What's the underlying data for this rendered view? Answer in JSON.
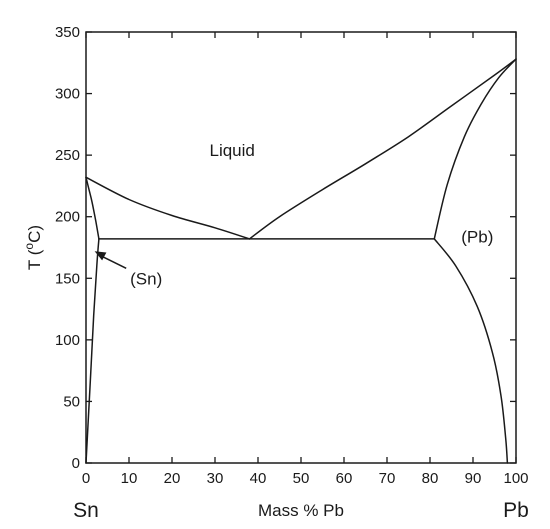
{
  "chart_data": {
    "type": "line",
    "title": "",
    "xlabel": "Mass % Pb",
    "ylabel": "T (°C)",
    "xlim": [
      0,
      100
    ],
    "ylim": [
      0,
      350
    ],
    "x_ticks": [
      0,
      10,
      20,
      30,
      40,
      50,
      60,
      70,
      80,
      90,
      100
    ],
    "y_ticks": [
      0,
      50,
      100,
      150,
      200,
      250,
      300,
      350
    ],
    "grid": false,
    "x_end_labels": {
      "left": "Sn",
      "right": "Pb"
    },
    "series": [
      {
        "points": [
          [
            0,
            232
          ],
          [
            10,
            214
          ],
          [
            20,
            201
          ],
          [
            30,
            191
          ],
          [
            38,
            182
          ]
        ]
      },
      {
        "points": [
          [
            38,
            182
          ],
          [
            45,
            200
          ],
          [
            55,
            222
          ],
          [
            65,
            243
          ],
          [
            75,
            265
          ],
          [
            85,
            290
          ],
          [
            95,
            315
          ],
          [
            100,
            328
          ]
        ]
      },
      {
        "points": [
          [
            3,
            182
          ],
          [
            2.3,
            196
          ],
          [
            1.4,
            212
          ],
          [
            0.7,
            222
          ],
          [
            0,
            232
          ]
        ]
      },
      {
        "points": [
          [
            0,
            0
          ],
          [
            0.9,
            60
          ],
          [
            1.8,
            120
          ],
          [
            2.5,
            160
          ],
          [
            3,
            182
          ]
        ]
      },
      {
        "points": [
          [
            3,
            182
          ],
          [
            81,
            182
          ]
        ]
      },
      {
        "points": [
          [
            81,
            182
          ],
          [
            84,
            226
          ],
          [
            88,
            265
          ],
          [
            92,
            292
          ],
          [
            96,
            313
          ],
          [
            100,
            328
          ]
        ]
      },
      {
        "points": [
          [
            81,
            182
          ],
          [
            86,
            160
          ],
          [
            91,
            127
          ],
          [
            94.5,
            90
          ],
          [
            96.5,
            55
          ],
          [
            97.6,
            20
          ],
          [
            98,
            0
          ]
        ]
      }
    ],
    "annotations": [
      {
        "text": "Liquid",
        "x": 34,
        "y": 254
      },
      {
        "text": "(Pb)",
        "x": 91,
        "y": 184
      },
      {
        "text": "(Sn)",
        "x": 14,
        "y": 150,
        "arrow_to": [
          2,
          172
        ]
      }
    ]
  }
}
